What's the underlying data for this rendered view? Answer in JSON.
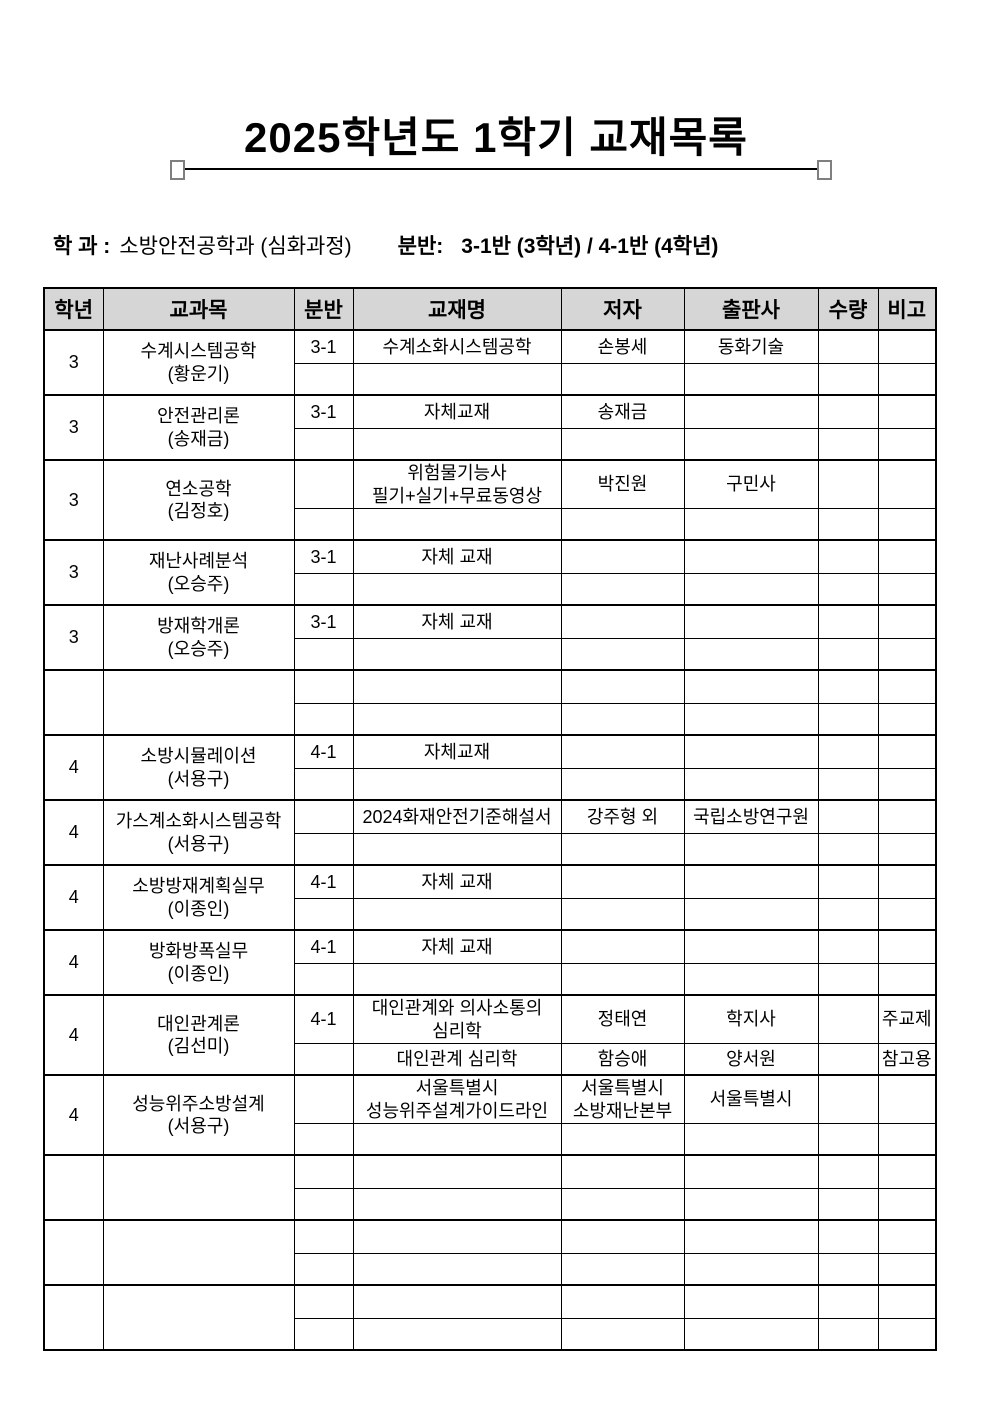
{
  "page": {
    "title": "2025학년도 1학기 교재목록",
    "dept_label": "학 과 :",
    "dept_value": "소방안전공학과 (심화과정)",
    "ban_label": "분반:",
    "ban_value": "3-1반 (3학년) / 4-1반 (4학년)"
  },
  "colors": {
    "header_bg": "#d6d6d6",
    "border": "#000000",
    "square_border": "#7f7f7f"
  },
  "table": {
    "headers": [
      "학년",
      "교과목",
      "분반",
      "교재명",
      "저자",
      "출판사",
      "수량",
      "비고"
    ],
    "blocks": [
      {
        "grade": "3",
        "subject": "수계시스템공학\n(황운기)",
        "rows": [
          {
            "ban": "3-1",
            "title": "수계소화시스템공학",
            "author": "손봉세",
            "publisher": "동화기술",
            "qty": "",
            "note": ""
          },
          {
            "ban": "",
            "title": "",
            "author": "",
            "publisher": "",
            "qty": "",
            "note": ""
          }
        ]
      },
      {
        "grade": "3",
        "subject": "안전관리론\n(송재금)",
        "rows": [
          {
            "ban": "3-1",
            "title": "자체교재",
            "author": "송재금",
            "publisher": "",
            "qty": "",
            "note": ""
          },
          {
            "ban": "",
            "title": "",
            "author": "",
            "publisher": "",
            "qty": "",
            "note": ""
          }
        ]
      },
      {
        "grade": "3",
        "subject": "연소공학\n(김정호)",
        "rows": [
          {
            "ban": "",
            "title": "위험물기능사\n필기+실기+무료동영상",
            "author": "박진원",
            "publisher": "구민사",
            "qty": "",
            "note": ""
          },
          {
            "ban": "",
            "title": "",
            "author": "",
            "publisher": "",
            "qty": "",
            "note": ""
          }
        ]
      },
      {
        "grade": "3",
        "subject": "재난사례분석\n(오승주)",
        "rows": [
          {
            "ban": "3-1",
            "title": "자체 교재",
            "author": "",
            "publisher": "",
            "qty": "",
            "note": ""
          },
          {
            "ban": "",
            "title": "",
            "author": "",
            "publisher": "",
            "qty": "",
            "note": ""
          }
        ]
      },
      {
        "grade": "3",
        "subject": "방재학개론\n(오승주)",
        "rows": [
          {
            "ban": "3-1",
            "title": "자체 교재",
            "author": "",
            "publisher": "",
            "qty": "",
            "note": ""
          },
          {
            "ban": "",
            "title": "",
            "author": "",
            "publisher": "",
            "qty": "",
            "note": ""
          }
        ]
      },
      {
        "grade": "",
        "subject": "",
        "rows": [
          {
            "ban": "",
            "title": "",
            "author": "",
            "publisher": "",
            "qty": "",
            "note": ""
          },
          {
            "ban": "",
            "title": "",
            "author": "",
            "publisher": "",
            "qty": "",
            "note": ""
          }
        ]
      },
      {
        "grade": "4",
        "subject": "소방시뮬레이션\n(서용구)",
        "rows": [
          {
            "ban": "4-1",
            "title": "자체교재",
            "author": "",
            "publisher": "",
            "qty": "",
            "note": ""
          },
          {
            "ban": "",
            "title": "",
            "author": "",
            "publisher": "",
            "qty": "",
            "note": ""
          }
        ]
      },
      {
        "grade": "4",
        "subject": "가스계소화시스템공학\n(서용구)",
        "rows": [
          {
            "ban": "",
            "title": "2024화재안전기준해설서",
            "author": "강주형 외",
            "publisher": "국립소방연구원",
            "qty": "",
            "note": ""
          },
          {
            "ban": "",
            "title": "",
            "author": "",
            "publisher": "",
            "qty": "",
            "note": ""
          }
        ]
      },
      {
        "grade": "4",
        "subject": "소방방재계획실무\n(이종인)",
        "rows": [
          {
            "ban": "4-1",
            "title": "자체 교재",
            "author": "",
            "publisher": "",
            "qty": "",
            "note": ""
          },
          {
            "ban": "",
            "title": "",
            "author": "",
            "publisher": "",
            "qty": "",
            "note": ""
          }
        ]
      },
      {
        "grade": "4",
        "subject": "방화방폭실무\n(이종인)",
        "rows": [
          {
            "ban": "4-1",
            "title": "자체 교재",
            "author": "",
            "publisher": "",
            "qty": "",
            "note": ""
          },
          {
            "ban": "",
            "title": "",
            "author": "",
            "publisher": "",
            "qty": "",
            "note": ""
          }
        ]
      },
      {
        "grade": "4",
        "subject": "대인관계론\n(김선미)",
        "rows": [
          {
            "ban": "4-1",
            "title": "대인관계와 의사소통의\n심리학",
            "author": "정태연",
            "publisher": "학지사",
            "qty": "",
            "note": "주교제"
          },
          {
            "ban": "",
            "title": "대인관계 심리학",
            "author": "함승애",
            "publisher": "양서원",
            "qty": "",
            "note": "참고용"
          }
        ]
      },
      {
        "grade": "4",
        "subject": "성능위주소방설계\n(서용구)",
        "rows": [
          {
            "ban": "",
            "title": "서울특별시\n성능위주설계가이드라인",
            "author": "서울특별시\n소방재난본부",
            "publisher": "서울특별시",
            "qty": "",
            "note": ""
          },
          {
            "ban": "",
            "title": "",
            "author": "",
            "publisher": "",
            "qty": "",
            "note": ""
          }
        ]
      },
      {
        "grade": "",
        "subject": "",
        "rows": [
          {
            "ban": "",
            "title": "",
            "author": "",
            "publisher": "",
            "qty": "",
            "note": ""
          },
          {
            "ban": "",
            "title": "",
            "author": "",
            "publisher": "",
            "qty": "",
            "note": ""
          }
        ]
      },
      {
        "grade": "",
        "subject": "",
        "rows": [
          {
            "ban": "",
            "title": "",
            "author": "",
            "publisher": "",
            "qty": "",
            "note": ""
          },
          {
            "ban": "",
            "title": "",
            "author": "",
            "publisher": "",
            "qty": "",
            "note": ""
          }
        ]
      },
      {
        "grade": "",
        "subject": "",
        "rows": [
          {
            "ban": "",
            "title": "",
            "author": "",
            "publisher": "",
            "qty": "",
            "note": ""
          },
          {
            "ban": "",
            "title": "",
            "author": "",
            "publisher": "",
            "qty": "",
            "note": ""
          }
        ]
      }
    ]
  }
}
